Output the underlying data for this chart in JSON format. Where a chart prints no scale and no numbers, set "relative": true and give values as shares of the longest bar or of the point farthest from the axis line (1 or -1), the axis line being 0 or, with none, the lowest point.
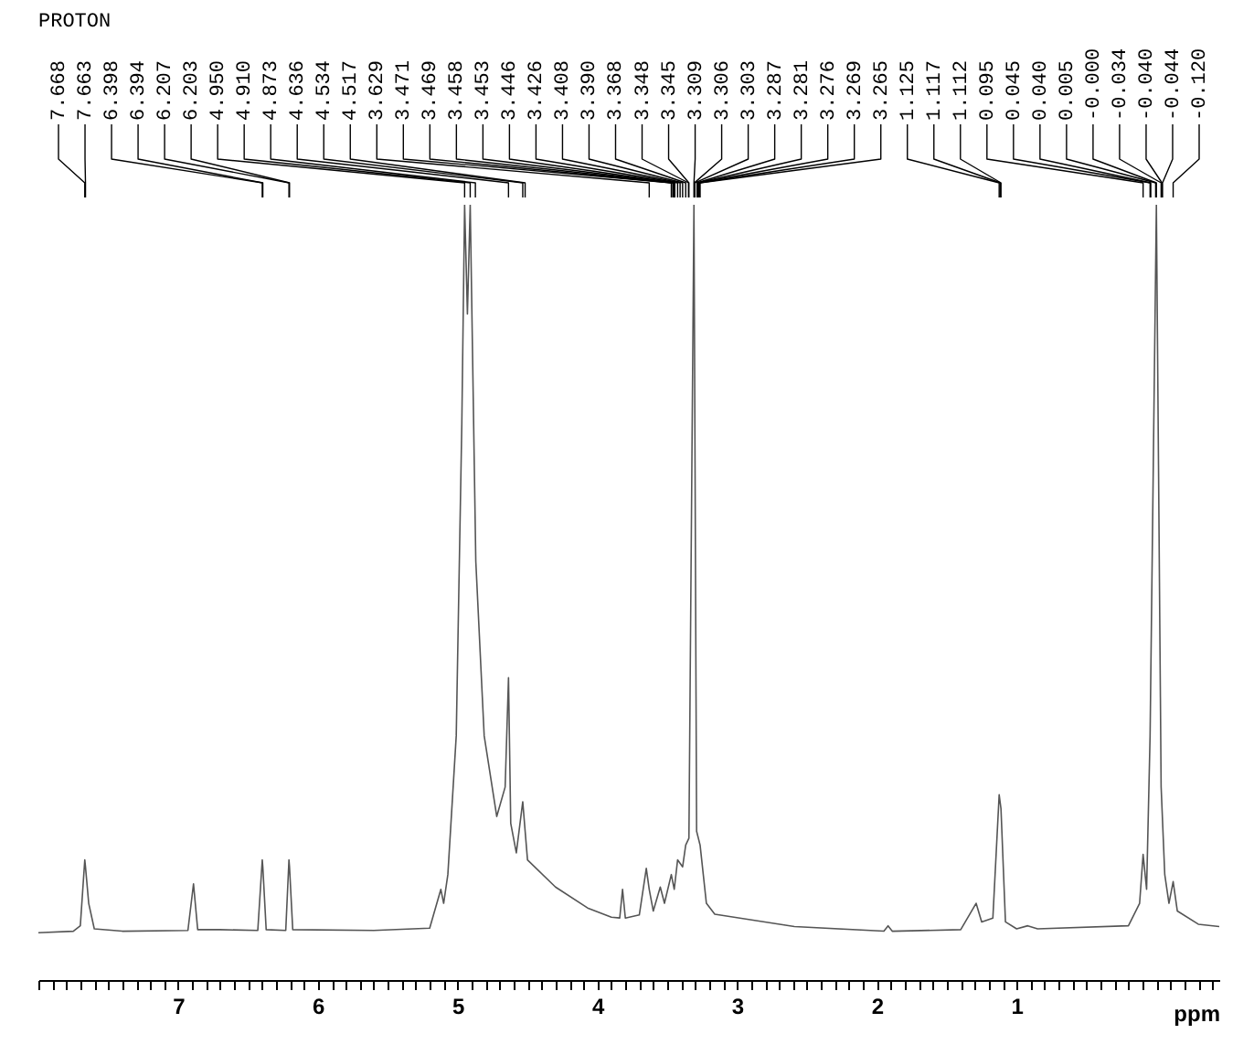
{
  "chart_data": {
    "type": "line",
    "title": "PROTON",
    "xlabel": "ppm",
    "relative": true,
    "xlim": [
      8.0,
      -0.45
    ],
    "xticks": [
      {
        "value": 8,
        "label": null
      },
      {
        "value": 7.9,
        "label": null
      },
      {
        "value": 7.8,
        "label": null
      },
      {
        "value": 7.7,
        "label": null
      },
      {
        "value": 7.6,
        "label": null
      },
      {
        "value": 7.5,
        "label": null
      },
      {
        "value": 7.4,
        "label": null
      },
      {
        "value": 7.3,
        "label": null
      },
      {
        "value": 7.2,
        "label": null
      },
      {
        "value": 7.1,
        "label": null
      },
      7,
      {
        "value": 6.9,
        "label": null
      },
      {
        "value": 6.8,
        "label": null
      },
      {
        "value": 6.7,
        "label": null
      },
      {
        "value": 6.6,
        "label": null
      },
      {
        "value": 6.5,
        "label": null
      },
      {
        "value": 6.4,
        "label": null
      },
      {
        "value": 6.3,
        "label": null
      },
      {
        "value": 6.2,
        "label": null
      },
      {
        "value": 6.1,
        "label": null
      },
      6,
      {
        "value": 5.9,
        "label": null
      },
      {
        "value": 5.8,
        "label": null
      },
      {
        "value": 5.7,
        "label": null
      },
      {
        "value": 5.6,
        "label": null
      },
      {
        "value": 5.5,
        "label": null
      },
      {
        "value": 5.4,
        "label": null
      },
      {
        "value": 5.3,
        "label": null
      },
      {
        "value": 5.2,
        "label": null
      },
      {
        "value": 5.1,
        "label": null
      },
      5,
      {
        "value": 4.9,
        "label": null
      },
      {
        "value": 4.8,
        "label": null
      },
      {
        "value": 4.7,
        "label": null
      },
      {
        "value": 4.6,
        "label": null
      },
      {
        "value": 4.5,
        "label": null
      },
      {
        "value": 4.4,
        "label": null
      },
      {
        "value": 4.3,
        "label": null
      },
      {
        "value": 4.2,
        "label": null
      },
      {
        "value": 4.1,
        "label": null
      },
      4,
      {
        "value": 3.9,
        "label": null
      },
      {
        "value": 3.8,
        "label": null
      },
      {
        "value": 3.7,
        "label": null
      },
      {
        "value": 3.6,
        "label": null
      },
      {
        "value": 3.5,
        "label": null
      },
      {
        "value": 3.4,
        "label": null
      },
      {
        "value": 3.3,
        "label": null
      },
      {
        "value": 3.2,
        "label": null
      },
      {
        "value": 3.1,
        "label": null
      },
      3,
      {
        "value": 2.9,
        "label": null
      },
      {
        "value": 2.8,
        "label": null
      },
      {
        "value": 2.7,
        "label": null
      },
      {
        "value": 2.6,
        "label": null
      },
      {
        "value": 2.5,
        "label": null
      },
      {
        "value": 2.4,
        "label": null
      },
      {
        "value": 2.3,
        "label": null
      },
      {
        "value": 2.2,
        "label": null
      },
      {
        "value": 2.1,
        "label": null
      },
      2,
      {
        "value": 1.9,
        "label": null
      },
      {
        "value": 1.8,
        "label": null
      },
      {
        "value": 1.7,
        "label": null
      },
      {
        "value": 1.6,
        "label": null
      },
      {
        "value": 1.5,
        "label": null
      },
      {
        "value": 1.4,
        "label": null
      },
      {
        "value": 1.3,
        "label": null
      },
      {
        "value": 1.2,
        "label": null
      },
      {
        "value": 1.1,
        "label": null
      },
      1,
      {
        "value": 0.9,
        "label": null
      },
      {
        "value": 0.8,
        "label": null
      },
      {
        "value": 0.7,
        "label": null
      },
      {
        "value": 0.6,
        "label": null
      },
      {
        "value": 0.5,
        "label": null
      },
      {
        "value": 0.4,
        "label": null
      },
      {
        "value": 0.3,
        "label": null
      },
      {
        "value": 0.2,
        "label": null
      },
      {
        "value": 0.1,
        "label": null
      },
      {
        "value": 0,
        "label": null
      },
      {
        "value": -0.1,
        "label": null
      },
      {
        "value": -0.2,
        "label": null
      },
      {
        "value": -0.3,
        "label": null
      },
      {
        "value": -0.4,
        "label": null
      }
    ],
    "series": [
      {
        "color": "#555555",
        "x": [
          8.0,
          7.75,
          7.7,
          7.668,
          7.663,
          7.64,
          7.6,
          7.4,
          6.93,
          6.89,
          6.86,
          6.7,
          6.43,
          6.398,
          6.394,
          6.37,
          6.23,
          6.207,
          6.203,
          6.18,
          5.6,
          5.2,
          5.12,
          5.1,
          5.07,
          5.01,
          4.97,
          4.95,
          4.93,
          4.91,
          4.87,
          4.81,
          4.72,
          4.66,
          4.636,
          4.62,
          4.58,
          4.534,
          4.517,
          4.5,
          4.3,
          4.07,
          3.9,
          3.84,
          3.82,
          3.8,
          3.7,
          3.65,
          3.629,
          3.6,
          3.55,
          3.52,
          3.471,
          3.45,
          3.426,
          3.39,
          3.368,
          3.345,
          3.309,
          3.29,
          3.265,
          3.22,
          3.16,
          2.59,
          1.95,
          1.92,
          1.89,
          1.4,
          1.29,
          1.25,
          1.17,
          1.125,
          1.112,
          1.08,
          1.0,
          0.92,
          0.85,
          0.2,
          0.12,
          0.095,
          0.07,
          0.045,
          0.0,
          -0.034,
          -0.06,
          -0.09,
          -0.12,
          -0.15,
          -0.3,
          -0.45
        ],
        "values": [
          0.061,
          0.063,
          0.07,
          0.155,
          0.146,
          0.099,
          0.066,
          0.063,
          0.064,
          0.124,
          0.065,
          0.065,
          0.064,
          0.155,
          0.146,
          0.065,
          0.064,
          0.155,
          0.146,
          0.065,
          0.064,
          0.067,
          0.117,
          0.099,
          0.136,
          0.315,
          0.718,
          1,
          0.859,
          1,
          0.54,
          0.315,
          0.211,
          0.249,
          0.39,
          0.202,
          0.164,
          0.23,
          0.192,
          0.155,
          0.12,
          0.093,
          0.081,
          0.08,
          0.117,
          0.08,
          0.084,
          0.144,
          0.117,
          0.089,
          0.12,
          0.099,
          0.136,
          0.117,
          0.155,
          0.146,
          0.174,
          0.183,
          1,
          0.192,
          0.174,
          0.099,
          0.085,
          0.069,
          0.063,
          0.07,
          0.063,
          0.065,
          0.099,
          0.075,
          0.08,
          0.239,
          0.221,
          0.075,
          0.066,
          0.07,
          0.066,
          0.07,
          0.099,
          0.162,
          0.117,
          0.315,
          1,
          0.249,
          0.136,
          0.099,
          0.127,
          0.089,
          0.072,
          0.069
        ]
      }
    ],
    "annotations": [
      {
        "text": "7.668",
        "x": 7.668
      },
      {
        "text": "7.663",
        "x": 7.663
      },
      {
        "text": "6.398",
        "x": 6.398
      },
      {
        "text": "6.394",
        "x": 6.394
      },
      {
        "text": "6.207",
        "x": 6.207
      },
      {
        "text": "6.203",
        "x": 6.203
      },
      {
        "text": "4.950",
        "x": 4.95
      },
      {
        "text": "4.910",
        "x": 4.91
      },
      {
        "text": "4.873",
        "x": 4.873
      },
      {
        "text": "4.636",
        "x": 4.636
      },
      {
        "text": "4.534",
        "x": 4.534
      },
      {
        "text": "4.517",
        "x": 4.517
      },
      {
        "text": "3.629",
        "x": 3.629
      },
      {
        "text": "3.471",
        "x": 3.471
      },
      {
        "text": "3.469",
        "x": 3.469
      },
      {
        "text": "3.458",
        "x": 3.458
      },
      {
        "text": "3.453",
        "x": 3.453
      },
      {
        "text": "3.446",
        "x": 3.446
      },
      {
        "text": "3.426",
        "x": 3.426
      },
      {
        "text": "3.408",
        "x": 3.408
      },
      {
        "text": "3.390",
        "x": 3.39
      },
      {
        "text": "3.368",
        "x": 3.368
      },
      {
        "text": "3.348",
        "x": 3.348
      },
      {
        "text": "3.345",
        "x": 3.345
      },
      {
        "text": "3.309",
        "x": 3.309
      },
      {
        "text": "3.306",
        "x": 3.306
      },
      {
        "text": "3.303",
        "x": 3.303
      },
      {
        "text": "3.287",
        "x": 3.287
      },
      {
        "text": "3.281",
        "x": 3.281
      },
      {
        "text": "3.276",
        "x": 3.276
      },
      {
        "text": "3.269",
        "x": 3.269
      },
      {
        "text": "3.265",
        "x": 3.265
      },
      {
        "text": "1.125",
        "x": 1.125
      },
      {
        "text": "1.117",
        "x": 1.117
      },
      {
        "text": "1.112",
        "x": 1.112
      },
      {
        "text": "0.095",
        "x": 0.095
      },
      {
        "text": "0.045",
        "x": 0.045
      },
      {
        "text": "0.040",
        "x": 0.04
      },
      {
        "text": "0.005",
        "x": 0.005
      },
      {
        "text": "-0.000",
        "x": 0.0
      },
      {
        "text": "-0.034",
        "x": -0.034
      },
      {
        "text": "-0.040",
        "x": -0.04
      },
      {
        "text": "-0.044",
        "x": -0.044
      },
      {
        "text": "-0.120",
        "x": -0.12
      }
    ]
  }
}
